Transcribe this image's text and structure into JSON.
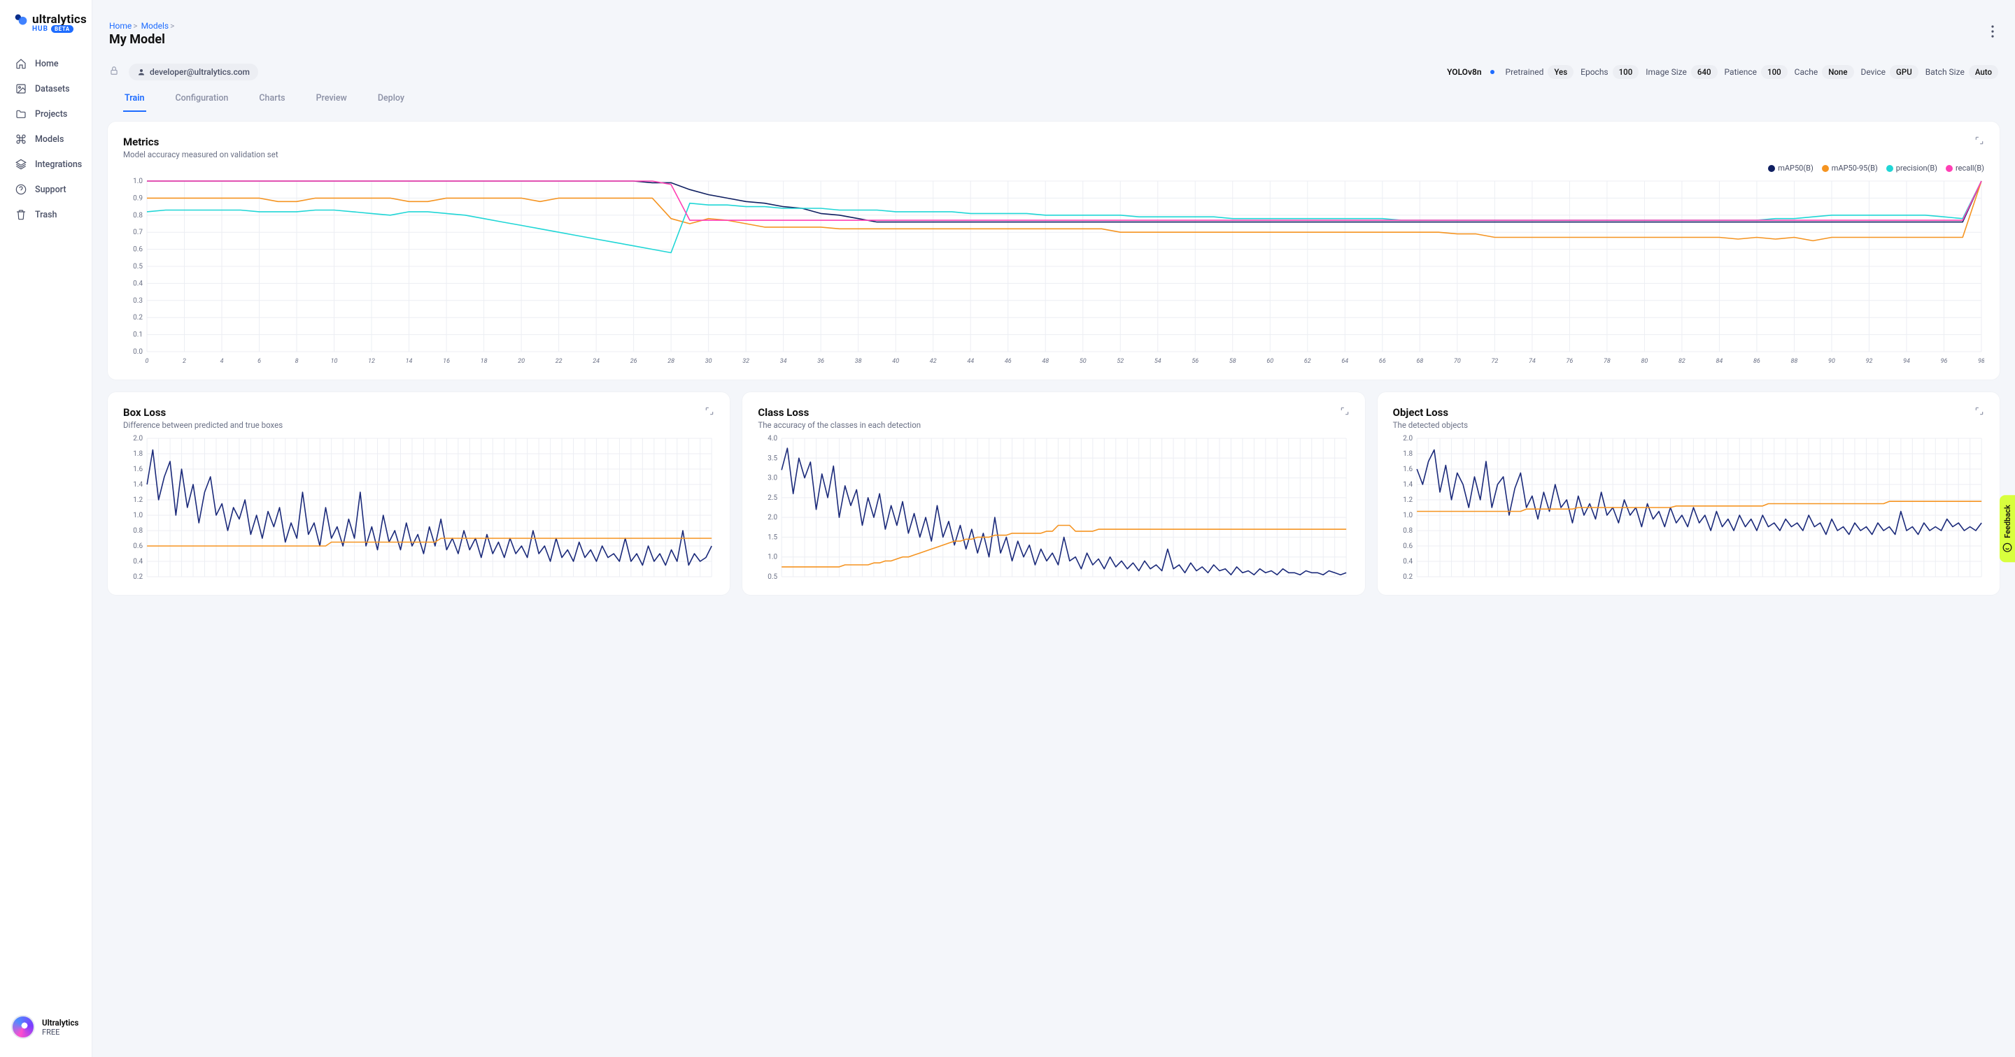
{
  "brand": {
    "name": "ultralytics",
    "hub": "HUB",
    "beta": "BETA"
  },
  "nav": [
    {
      "label": "Home",
      "icon": "home"
    },
    {
      "label": "Datasets",
      "icon": "image"
    },
    {
      "label": "Projects",
      "icon": "folder"
    },
    {
      "label": "Models",
      "icon": "command"
    },
    {
      "label": "Integrations",
      "icon": "layers"
    },
    {
      "label": "Support",
      "icon": "help"
    },
    {
      "label": "Trash",
      "icon": "trash"
    }
  ],
  "footer": {
    "org": "Ultralytics",
    "plan": "FREE"
  },
  "breadcrumbs": [
    "Home",
    "Models"
  ],
  "page_title": "My Model",
  "user_email": "developer@ultralytics.com",
  "model_name": "YOLOv8n",
  "params": [
    {
      "label": "Pretrained",
      "value": "Yes"
    },
    {
      "label": "Epochs",
      "value": "100"
    },
    {
      "label": "Image Size",
      "value": "640"
    },
    {
      "label": "Patience",
      "value": "100"
    },
    {
      "label": "Cache",
      "value": "None"
    },
    {
      "label": "Device",
      "value": "GPU"
    },
    {
      "label": "Batch Size",
      "value": "Auto"
    }
  ],
  "tabs": [
    "Train",
    "Configuration",
    "Charts",
    "Preview",
    "Deploy"
  ],
  "active_tab": 0,
  "feedback_label": "Feedback",
  "colors": {
    "map50": "#0f1f61",
    "map5095": "#f59421",
    "precision": "#20d6d6",
    "recall": "#ff3fb4",
    "series1": "#1b2a7a",
    "series2": "#f59421",
    "bg": "#ffffff",
    "grid": "#eceef3",
    "text": "#6b7186"
  },
  "metrics_chart": {
    "title": "Metrics",
    "subtitle": "Model accuracy measured on validation set",
    "legend": [
      {
        "label": "mAP50(B)",
        "color": "#0f1f61"
      },
      {
        "label": "mAP50-95(B)",
        "color": "#f59421"
      },
      {
        "label": "precision(B)",
        "color": "#20d6d6"
      },
      {
        "label": "recall(B)",
        "color": "#ff3fb4"
      }
    ],
    "ylim": [
      0,
      1.0
    ],
    "ytick_step": 0.1,
    "xlim": [
      0,
      98
    ],
    "xtick_step": 2,
    "series": {
      "map50": [
        1.0,
        1.0,
        1.0,
        1.0,
        1.0,
        1.0,
        1.0,
        1.0,
        1.0,
        1.0,
        1.0,
        1.0,
        1.0,
        1.0,
        1.0,
        1.0,
        1.0,
        1.0,
        1.0,
        1.0,
        1.0,
        1.0,
        1.0,
        1.0,
        1.0,
        1.0,
        1.0,
        0.99,
        0.99,
        0.95,
        0.92,
        0.9,
        0.88,
        0.87,
        0.85,
        0.84,
        0.81,
        0.8,
        0.78,
        0.76,
        0.76,
        0.76,
        0.76,
        0.76,
        0.76,
        0.76,
        0.76,
        0.76,
        0.76,
        0.76,
        0.76,
        0.76,
        0.76,
        0.76,
        0.76,
        0.76,
        0.76,
        0.76,
        0.76,
        0.76,
        0.76,
        0.76,
        0.76,
        0.76,
        0.76,
        0.76,
        0.76,
        0.76,
        0.76,
        0.76,
        0.76,
        0.76,
        0.76,
        0.76,
        0.76,
        0.76,
        0.76,
        0.76,
        0.76,
        0.76,
        0.76,
        0.76,
        0.76,
        0.76,
        0.76,
        0.76,
        0.76,
        0.76,
        0.76,
        0.76,
        0.76,
        0.76,
        0.76,
        0.76,
        0.76,
        0.76,
        0.76,
        0.76,
        1.0
      ],
      "map5095": [
        0.9,
        0.9,
        0.9,
        0.9,
        0.9,
        0.9,
        0.9,
        0.88,
        0.88,
        0.9,
        0.9,
        0.9,
        0.9,
        0.9,
        0.88,
        0.88,
        0.9,
        0.9,
        0.9,
        0.9,
        0.9,
        0.88,
        0.9,
        0.9,
        0.9,
        0.9,
        0.9,
        0.9,
        0.78,
        0.75,
        0.78,
        0.77,
        0.75,
        0.73,
        0.73,
        0.73,
        0.73,
        0.72,
        0.72,
        0.72,
        0.72,
        0.72,
        0.72,
        0.72,
        0.72,
        0.72,
        0.72,
        0.72,
        0.72,
        0.72,
        0.72,
        0.72,
        0.7,
        0.7,
        0.7,
        0.7,
        0.7,
        0.7,
        0.7,
        0.7,
        0.7,
        0.7,
        0.7,
        0.7,
        0.7,
        0.7,
        0.7,
        0.7,
        0.7,
        0.7,
        0.69,
        0.69,
        0.67,
        0.67,
        0.67,
        0.67,
        0.67,
        0.67,
        0.67,
        0.67,
        0.67,
        0.67,
        0.67,
        0.67,
        0.67,
        0.66,
        0.67,
        0.66,
        0.67,
        0.65,
        0.67,
        0.67,
        0.67,
        0.67,
        0.67,
        0.67,
        0.67,
        0.67,
        1.0
      ],
      "precision": [
        0.82,
        0.83,
        0.83,
        0.83,
        0.83,
        0.83,
        0.82,
        0.82,
        0.82,
        0.83,
        0.83,
        0.82,
        0.81,
        0.8,
        0.82,
        0.82,
        0.81,
        0.8,
        0.78,
        0.76,
        0.74,
        0.72,
        0.7,
        0.68,
        0.66,
        0.64,
        0.62,
        0.6,
        0.58,
        0.87,
        0.86,
        0.86,
        0.85,
        0.85,
        0.84,
        0.84,
        0.84,
        0.83,
        0.83,
        0.83,
        0.82,
        0.82,
        0.82,
        0.82,
        0.81,
        0.81,
        0.81,
        0.81,
        0.8,
        0.8,
        0.8,
        0.8,
        0.8,
        0.79,
        0.79,
        0.79,
        0.79,
        0.79,
        0.78,
        0.78,
        0.78,
        0.78,
        0.78,
        0.78,
        0.78,
        0.78,
        0.78,
        0.77,
        0.77,
        0.77,
        0.77,
        0.77,
        0.77,
        0.77,
        0.77,
        0.77,
        0.77,
        0.77,
        0.77,
        0.77,
        0.77,
        0.77,
        0.77,
        0.77,
        0.77,
        0.77,
        0.77,
        0.78,
        0.78,
        0.79,
        0.8,
        0.8,
        0.8,
        0.8,
        0.8,
        0.8,
        0.79,
        0.78,
        1.0
      ],
      "recall": [
        1.0,
        1.0,
        1.0,
        1.0,
        1.0,
        1.0,
        1.0,
        1.0,
        1.0,
        1.0,
        1.0,
        1.0,
        1.0,
        1.0,
        1.0,
        1.0,
        1.0,
        1.0,
        1.0,
        1.0,
        1.0,
        1.0,
        1.0,
        1.0,
        1.0,
        1.0,
        1.0,
        1.0,
        0.98,
        0.77,
        0.77,
        0.77,
        0.77,
        0.77,
        0.77,
        0.77,
        0.77,
        0.77,
        0.77,
        0.77,
        0.77,
        0.77,
        0.77,
        0.77,
        0.77,
        0.77,
        0.77,
        0.77,
        0.77,
        0.77,
        0.77,
        0.77,
        0.77,
        0.77,
        0.77,
        0.77,
        0.77,
        0.77,
        0.77,
        0.77,
        0.77,
        0.77,
        0.77,
        0.77,
        0.77,
        0.77,
        0.77,
        0.77,
        0.77,
        0.77,
        0.77,
        0.77,
        0.77,
        0.77,
        0.77,
        0.77,
        0.77,
        0.77,
        0.77,
        0.77,
        0.77,
        0.77,
        0.77,
        0.77,
        0.77,
        0.77,
        0.77,
        0.77,
        0.77,
        0.77,
        0.77,
        0.77,
        0.77,
        0.77,
        0.77,
        0.77,
        0.77,
        0.77,
        1.0
      ]
    }
  },
  "loss_charts": [
    {
      "title": "Box Loss",
      "subtitle": "Difference between predicted and true boxes",
      "ylim": [
        0.2,
        2.0
      ],
      "ytick_step": 0.2,
      "series": {
        "train": [
          1.4,
          1.85,
          1.2,
          1.5,
          1.7,
          1.0,
          1.6,
          1.1,
          1.4,
          0.9,
          1.3,
          1.5,
          1.0,
          1.15,
          0.8,
          1.1,
          0.95,
          1.2,
          0.75,
          1.0,
          0.7,
          1.05,
          0.85,
          1.1,
          0.65,
          0.9,
          0.7,
          1.3,
          0.75,
          0.9,
          0.6,
          1.1,
          0.7,
          0.85,
          0.6,
          0.95,
          0.7,
          1.3,
          0.6,
          0.85,
          0.55,
          1.0,
          0.65,
          0.8,
          0.55,
          0.9,
          0.6,
          0.75,
          0.5,
          0.85,
          0.6,
          0.95,
          0.55,
          0.7,
          0.5,
          0.8,
          0.55,
          0.7,
          0.45,
          0.75,
          0.5,
          0.65,
          0.45,
          0.7,
          0.5,
          0.6,
          0.45,
          0.8,
          0.5,
          0.6,
          0.4,
          0.7,
          0.45,
          0.55,
          0.4,
          0.65,
          0.45,
          0.55,
          0.4,
          0.6,
          0.45,
          0.5,
          0.4,
          0.7,
          0.4,
          0.5,
          0.35,
          0.6,
          0.4,
          0.5,
          0.35,
          0.55,
          0.4,
          0.8,
          0.35,
          0.5,
          0.4,
          0.45,
          0.6
        ],
        "val": [
          0.6,
          0.6,
          0.6,
          0.6,
          0.6,
          0.6,
          0.6,
          0.6,
          0.6,
          0.6,
          0.6,
          0.6,
          0.6,
          0.6,
          0.6,
          0.6,
          0.6,
          0.6,
          0.6,
          0.6,
          0.6,
          0.6,
          0.6,
          0.6,
          0.6,
          0.6,
          0.6,
          0.6,
          0.6,
          0.6,
          0.6,
          0.6,
          0.65,
          0.65,
          0.65,
          0.65,
          0.65,
          0.65,
          0.65,
          0.65,
          0.65,
          0.65,
          0.65,
          0.65,
          0.65,
          0.65,
          0.65,
          0.65,
          0.65,
          0.65,
          0.65,
          0.7,
          0.7,
          0.7,
          0.7,
          0.7,
          0.7,
          0.7,
          0.7,
          0.7,
          0.7,
          0.7,
          0.7,
          0.7,
          0.7,
          0.7,
          0.7,
          0.7,
          0.7,
          0.7,
          0.7,
          0.7,
          0.7,
          0.7,
          0.7,
          0.7,
          0.7,
          0.7,
          0.7,
          0.7,
          0.7,
          0.7,
          0.7,
          0.7,
          0.7,
          0.7,
          0.7,
          0.7,
          0.7,
          0.7,
          0.7,
          0.7,
          0.7,
          0.7,
          0.7,
          0.7,
          0.7,
          0.7,
          0.7
        ]
      }
    },
    {
      "title": "Class Loss",
      "subtitle": "The accuracy of the classes in each detection",
      "ylim": [
        0.5,
        4.0
      ],
      "ytick_step": 0.5,
      "series": {
        "train": [
          3.2,
          3.75,
          2.6,
          3.5,
          3.0,
          3.4,
          2.2,
          3.1,
          2.5,
          3.3,
          2.0,
          2.8,
          2.3,
          2.7,
          1.8,
          2.5,
          2.0,
          2.6,
          1.7,
          2.3,
          1.8,
          2.4,
          1.6,
          2.1,
          1.5,
          2.0,
          1.4,
          2.3,
          1.5,
          1.9,
          1.3,
          1.8,
          1.2,
          1.7,
          1.1,
          1.6,
          1.0,
          2.0,
          1.1,
          1.5,
          0.9,
          1.4,
          1.0,
          1.3,
          0.8,
          1.2,
          0.9,
          1.1,
          0.8,
          1.5,
          0.9,
          1.0,
          0.7,
          1.1,
          0.8,
          0.95,
          0.7,
          1.0,
          0.75,
          0.9,
          0.7,
          0.85,
          0.65,
          0.9,
          0.7,
          0.8,
          0.65,
          1.2,
          0.7,
          0.8,
          0.6,
          0.85,
          0.65,
          0.75,
          0.6,
          0.8,
          0.65,
          0.7,
          0.55,
          0.75,
          0.6,
          0.65,
          0.55,
          0.7,
          0.6,
          0.65,
          0.55,
          0.7,
          0.6,
          0.6,
          0.55,
          0.65,
          0.6,
          0.6,
          0.55,
          0.65,
          0.6,
          0.55,
          0.6
        ],
        "val": [
          0.75,
          0.75,
          0.75,
          0.75,
          0.75,
          0.75,
          0.75,
          0.75,
          0.75,
          0.75,
          0.75,
          0.8,
          0.8,
          0.8,
          0.8,
          0.8,
          0.85,
          0.85,
          0.9,
          0.9,
          0.95,
          1.0,
          1.0,
          1.05,
          1.1,
          1.15,
          1.2,
          1.25,
          1.3,
          1.35,
          1.4,
          1.4,
          1.45,
          1.45,
          1.5,
          1.5,
          1.5,
          1.55,
          1.55,
          1.55,
          1.6,
          1.6,
          1.6,
          1.6,
          1.6,
          1.6,
          1.65,
          1.65,
          1.8,
          1.8,
          1.8,
          1.65,
          1.65,
          1.65,
          1.65,
          1.7,
          1.7,
          1.7,
          1.7,
          1.7,
          1.7,
          1.7,
          1.7,
          1.7,
          1.7,
          1.7,
          1.7,
          1.7,
          1.7,
          1.7,
          1.7,
          1.7,
          1.7,
          1.7,
          1.7,
          1.7,
          1.7,
          1.7,
          1.7,
          1.7,
          1.7,
          1.7,
          1.7,
          1.7,
          1.7,
          1.7,
          1.7,
          1.7,
          1.7,
          1.7,
          1.7,
          1.7,
          1.7,
          1.7,
          1.7,
          1.7,
          1.7,
          1.7,
          1.7
        ]
      }
    },
    {
      "title": "Object Loss",
      "subtitle": "The detected objects",
      "ylim": [
        0.2,
        2.0
      ],
      "ytick_step": 0.2,
      "series": {
        "train": [
          1.6,
          1.4,
          1.7,
          1.85,
          1.3,
          1.65,
          1.2,
          1.55,
          1.4,
          1.1,
          1.5,
          1.2,
          1.7,
          1.1,
          1.4,
          1.5,
          1.0,
          1.35,
          1.55,
          1.1,
          1.25,
          0.95,
          1.3,
          1.05,
          1.4,
          1.1,
          1.2,
          0.9,
          1.25,
          1.0,
          1.15,
          0.95,
          1.3,
          1.0,
          1.1,
          0.9,
          1.2,
          1.0,
          1.1,
          0.85,
          1.15,
          0.95,
          1.05,
          0.85,
          1.1,
          0.9,
          1.0,
          0.85,
          1.1,
          0.9,
          1.0,
          0.8,
          1.05,
          0.85,
          0.95,
          0.8,
          1.0,
          0.85,
          0.95,
          0.8,
          1.0,
          0.85,
          0.9,
          0.8,
          0.95,
          0.85,
          0.9,
          0.8,
          1.0,
          0.85,
          0.9,
          0.75,
          0.95,
          0.8,
          0.85,
          0.75,
          0.9,
          0.8,
          0.85,
          0.75,
          0.9,
          0.8,
          0.85,
          0.75,
          1.05,
          0.8,
          0.85,
          0.75,
          0.9,
          0.8,
          0.85,
          0.8,
          0.95,
          0.85,
          0.9,
          0.8,
          0.85,
          0.8,
          0.9
        ],
        "val": [
          1.05,
          1.05,
          1.05,
          1.05,
          1.05,
          1.05,
          1.05,
          1.05,
          1.05,
          1.05,
          1.05,
          1.05,
          1.05,
          1.05,
          1.05,
          1.05,
          1.05,
          1.05,
          1.05,
          1.08,
          1.08,
          1.08,
          1.08,
          1.08,
          1.08,
          1.08,
          1.08,
          1.08,
          1.1,
          1.1,
          1.1,
          1.1,
          1.1,
          1.1,
          1.1,
          1.1,
          1.1,
          1.1,
          1.1,
          1.1,
          1.1,
          1.1,
          1.1,
          1.1,
          1.1,
          1.12,
          1.12,
          1.12,
          1.12,
          1.12,
          1.12,
          1.12,
          1.12,
          1.12,
          1.12,
          1.12,
          1.12,
          1.12,
          1.12,
          1.12,
          1.12,
          1.15,
          1.15,
          1.15,
          1.15,
          1.15,
          1.15,
          1.15,
          1.15,
          1.15,
          1.15,
          1.15,
          1.15,
          1.15,
          1.15,
          1.15,
          1.15,
          1.15,
          1.15,
          1.15,
          1.15,
          1.15,
          1.18,
          1.18,
          1.18,
          1.18,
          1.18,
          1.18,
          1.18,
          1.18,
          1.18,
          1.18,
          1.18,
          1.18,
          1.18,
          1.18,
          1.18,
          1.18,
          1.18
        ]
      }
    }
  ]
}
